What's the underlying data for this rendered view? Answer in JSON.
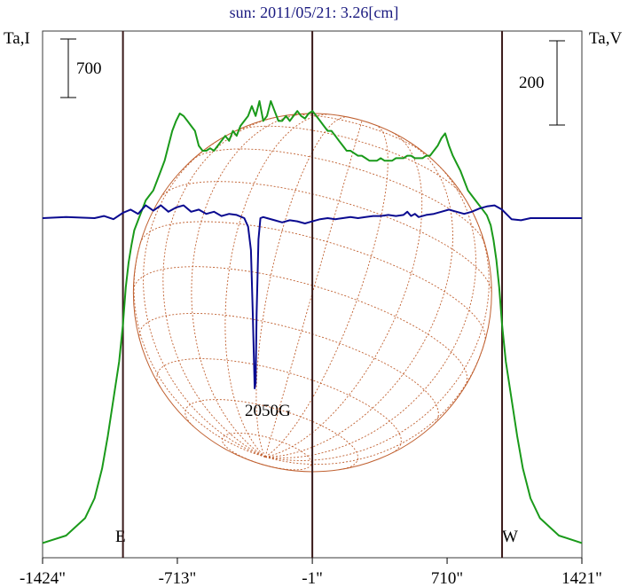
{
  "chart_data": {
    "type": "line",
    "title": "sun: 2011/05/21: 3.26[cm]",
    "left_axis_label": "Ta,I",
    "right_axis_label": "Ta,V",
    "left_scale_bar": "700",
    "right_scale_bar": "200",
    "x_ticks": [
      "-1424\"",
      "-713\"",
      "-1\"",
      "710\"",
      "1421\""
    ],
    "x_tick_values": [
      -1424,
      -713,
      -1,
      710,
      1421
    ],
    "xlim": [
      -1424,
      1421
    ],
    "limb_labels": {
      "east": "E",
      "west": "W"
    },
    "annotation": "2050G",
    "annotation_x": -300,
    "vertical_lines_x": [
      -1000,
      -1,
      1000
    ],
    "solar_radius_arcsec": 945,
    "colors": {
      "stokes_I": "#1a9a1a",
      "stokes_V": "#0a0a90",
      "disk": "#c06030",
      "frame": "#3a1a1a",
      "title": "#1a1a80"
    },
    "series": [
      {
        "x": [
          -1424,
          -1300,
          -1200,
          -1150,
          -1110,
          -1080,
          -1050,
          -1020,
          -1000,
          -985,
          -970,
          -955,
          -940,
          -920,
          -900,
          -880,
          -860,
          -840,
          -820,
          -800,
          -780,
          -760,
          -740,
          -720,
          -700,
          -680,
          -660,
          -640,
          -620,
          -600,
          -580,
          -560,
          -540,
          -520,
          -500,
          -480,
          -460,
          -440,
          -420,
          -400,
          -380,
          -360,
          -340,
          -320,
          -300,
          -280,
          -260,
          -240,
          -220,
          -200,
          -180,
          -160,
          -140,
          -120,
          -100,
          -80,
          -60,
          -40,
          -20,
          0,
          20,
          40,
          60,
          80,
          100,
          120,
          140,
          160,
          180,
          200,
          220,
          240,
          260,
          280,
          300,
          320,
          340,
          360,
          380,
          400,
          420,
          440,
          460,
          480,
          500,
          520,
          540,
          560,
          580,
          600,
          620,
          640,
          660,
          680,
          700,
          720,
          740,
          760,
          780,
          800,
          820,
          840,
          860,
          880,
          900,
          920,
          940,
          955,
          970,
          985,
          1000,
          1020,
          1050,
          1080,
          1110,
          1150,
          1200,
          1300,
          1421
        ],
        "values": [
          0.02,
          0.05,
          0.12,
          0.2,
          0.32,
          0.45,
          0.6,
          0.75,
          0.9,
          1.05,
          1.15,
          1.22,
          1.28,
          1.32,
          1.36,
          1.4,
          1.42,
          1.44,
          1.48,
          1.52,
          1.56,
          1.62,
          1.68,
          1.72,
          1.75,
          1.74,
          1.72,
          1.7,
          1.68,
          1.62,
          1.6,
          1.6,
          1.61,
          1.6,
          1.62,
          1.64,
          1.66,
          1.64,
          1.68,
          1.66,
          1.7,
          1.72,
          1.74,
          1.78,
          1.74,
          1.8,
          1.72,
          1.74,
          1.8,
          1.76,
          1.72,
          1.72,
          1.74,
          1.72,
          1.74,
          1.76,
          1.74,
          1.73,
          1.75,
          1.76,
          1.74,
          1.72,
          1.7,
          1.68,
          1.68,
          1.66,
          1.64,
          1.62,
          1.6,
          1.6,
          1.59,
          1.58,
          1.58,
          1.57,
          1.56,
          1.56,
          1.56,
          1.57,
          1.56,
          1.56,
          1.56,
          1.57,
          1.57,
          1.57,
          1.58,
          1.58,
          1.57,
          1.57,
          1.57,
          1.58,
          1.58,
          1.6,
          1.62,
          1.65,
          1.67,
          1.62,
          1.58,
          1.55,
          1.52,
          1.48,
          1.44,
          1.42,
          1.4,
          1.38,
          1.36,
          1.34,
          1.3,
          1.24,
          1.16,
          1.05,
          0.9,
          0.75,
          0.6,
          0.45,
          0.32,
          0.2,
          0.12,
          0.05,
          0.02
        ]
      },
      {
        "x": [
          -1424,
          -1300,
          -1150,
          -1100,
          -1050,
          -1000,
          -960,
          -920,
          -880,
          -840,
          -800,
          -760,
          -720,
          -680,
          -640,
          -600,
          -560,
          -520,
          -480,
          -440,
          -400,
          -360,
          -340,
          -325,
          -315,
          -305,
          -300,
          -295,
          -285,
          -275,
          -260,
          -240,
          -200,
          -160,
          -120,
          -80,
          -40,
          0,
          40,
          80,
          120,
          160,
          200,
          240,
          280,
          320,
          360,
          400,
          440,
          480,
          500,
          520,
          540,
          560,
          600,
          640,
          680,
          720,
          760,
          800,
          840,
          880,
          920,
          960,
          1000,
          1050,
          1100,
          1150,
          1300,
          1421
        ],
        "values": [
          0,
          0.01,
          0,
          0.02,
          -0.01,
          0.05,
          0.08,
          0.04,
          0.12,
          0.07,
          0.12,
          0.06,
          0.1,
          0.12,
          0.06,
          0.08,
          0.04,
          0.06,
          0.02,
          0.04,
          0.03,
          0.0,
          -0.08,
          -0.3,
          -0.9,
          -1.6,
          -1.55,
          -0.9,
          -0.2,
          0.0,
          0.01,
          0.0,
          -0.02,
          -0.04,
          -0.02,
          -0.03,
          -0.05,
          -0.03,
          -0.01,
          0,
          -0.01,
          0,
          0.01,
          0,
          0.01,
          0.02,
          0.02,
          0.03,
          0.02,
          0.03,
          0.06,
          0.02,
          0.04,
          0.01,
          0.03,
          0.04,
          0.06,
          0.08,
          0.06,
          0.04,
          0.06,
          0.09,
          0.11,
          0.12,
          0.08,
          -0.01,
          -0.02,
          0,
          0,
          0
        ]
      }
    ]
  }
}
